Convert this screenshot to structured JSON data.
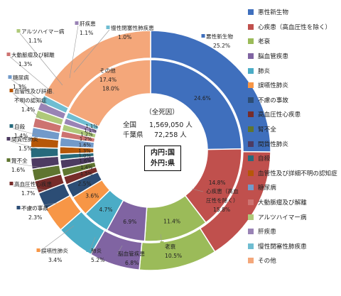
{
  "chart_data": {
    "type": "donut",
    "title": "",
    "center": {
      "heading": "（全死因）",
      "national_label": "全国",
      "national_value": "1,569,050 人",
      "pref_label": "千葉県",
      "pref_value": "72,258 人",
      "ring_note_inner": "内円:国",
      "ring_note_outer": "外円:県"
    },
    "categories": [
      "悪性新生物",
      "心疾患（高血圧性を除く）",
      "老衰",
      "脳血管疾患",
      "肺炎",
      "誤嚥性肺炎",
      "不慮の事故",
      "高血圧性心疾患",
      "腎不全",
      "間質性肺炎",
      "自殺",
      "血管性及び詳細不明の認知症",
      "糖尿病",
      "大動脈瘤及び解離",
      "アルツハイマー病",
      "肝疾患",
      "慢性閉塞性肺疾患",
      "その他"
    ],
    "colors": [
      "#3f6fbd",
      "#c0504d",
      "#9bbb59",
      "#8064a2",
      "#4bacc6",
      "#f79646",
      "#2c4d75",
      "#772c2a",
      "#5f7530",
      "#4d3b62",
      "#276a7c",
      "#b65708",
      "#729aca",
      "#cd7371",
      "#afc97a",
      "#9983b5",
      "#6fbdd1",
      "#f4a77a"
    ],
    "series": [
      {
        "name": "内円:国",
        "values": [
          24.6,
          14.8,
          11.4,
          6.9,
          4.7,
          3.6,
          2.5,
          1.5,
          1.4,
          1.6,
          1.0,
          1.3,
          1.6,
          1.2,
          1.2,
          1.1,
          1.1,
          18.0
        ]
      },
      {
        "name": "外円:県",
        "values": [
          25.2,
          15.8,
          10.5,
          6.8,
          5.2,
          3.4,
          2.3,
          1.7,
          1.6,
          1.5,
          1.4,
          1.4,
          1.3,
          1.3,
          1.1,
          1.1,
          1.0,
          17.4
        ]
      }
    ],
    "inner_labels": [
      "24.6%",
      "14.8%",
      "11.4%",
      "6.9%",
      "4.7%",
      "3.6%",
      "2.5%",
      "1.5%",
      "1.4%",
      "1.6%",
      "1.0%",
      "1.3%",
      "1.6%",
      "1.2%",
      "1.2%",
      "1.1%",
      "1.1%",
      "18.0%"
    ],
    "outer_labels": [
      [
        "悪性新生物",
        "25.2%"
      ],
      [
        "心疾患（高血",
        "圧性を除く）",
        "15.8%"
      ],
      [
        "老衰",
        "10.5%"
      ],
      [
        "脳血管疾患",
        "6.8%"
      ],
      [
        "肺炎",
        "5.2%"
      ],
      [
        "誤嚥性肺炎",
        "3.4%"
      ],
      [
        "不慮の事故",
        "2.3%"
      ],
      [
        "高血圧性心疾患",
        "1.7%"
      ],
      [
        "腎不全",
        "1.6%"
      ],
      [
        "間質性肺炎",
        "1.5%"
      ],
      [
        "自殺",
        "1.4%"
      ],
      [
        "血管性及び詳細",
        "不明の認知症",
        "1.4%"
      ],
      [
        "糖尿病",
        "1.3%"
      ],
      [
        "大動脈瘤及び解離",
        "1.3%"
      ],
      [
        "アルツハイマー病",
        "1.1%"
      ],
      [
        "肝疾患",
        "1.1%"
      ],
      [
        "慢性閉塞性肺疾患",
        "1.0%"
      ],
      [
        "その他",
        "17.4%"
      ]
    ],
    "legend": [
      "悪性新生物",
      "心疾患（高血圧性を除く）",
      "老衰",
      "脳血管疾患",
      "肺炎",
      "誤嚥性肺炎",
      "不慮の事故",
      "高血圧性心疾患",
      "腎不全",
      "間質性肺炎",
      "自殺",
      "血管性及び詳細不明の認知症",
      "糖尿病",
      "大動脈瘤及び解離",
      "アルツハイマー病",
      "肝疾患",
      "慢性閉塞性肺疾患",
      "その他"
    ],
    "legend_position": "right"
  }
}
